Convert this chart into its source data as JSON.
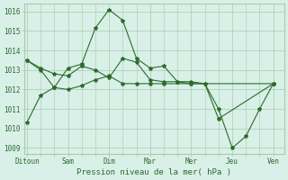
{
  "background_color": "#d8f0e8",
  "grid_color": "#aacaaa",
  "line_color": "#2d6a2d",
  "xtick_labels": [
    "Ditoun",
    "Sam",
    "Dim",
    "Mar",
    "Mer",
    "Jeu",
    "Ven"
  ],
  "xlabel": "Pression niveau de la mer( hPa )",
  "ytick_min": 1009,
  "ytick_max": 1016,
  "series": [
    {
      "x": [
        0,
        0.5,
        1,
        1.5,
        2,
        2.5,
        3,
        3.5,
        4,
        4.5,
        5,
        5.5,
        6,
        6.5,
        7,
        7.5,
        8,
        8.5,
        9
      ],
      "y": [
        1010.3,
        1011.7,
        1012.1,
        1013.1,
        1013.3,
        1015.15,
        1016.1,
        1015.55,
        1013.6,
        1013.1,
        1013.2,
        1012.4,
        1012.4,
        1012.3,
        1011.0,
        1009.0,
        1009.6,
        1011.0,
        1012.3
      ]
    },
    {
      "x": [
        0,
        0.5,
        1,
        1.5,
        2,
        2.5,
        3,
        3.5,
        4,
        4.5,
        5,
        5.5,
        6,
        6.5,
        7,
        9
      ],
      "y": [
        1013.5,
        1013.1,
        1012.8,
        1012.7,
        1013.2,
        1013.0,
        1012.6,
        1013.6,
        1013.4,
        1012.5,
        1012.4,
        1012.4,
        1012.3,
        1012.3,
        1010.5,
        1012.3
      ]
    },
    {
      "x": [
        0,
        0.5,
        1,
        1.5,
        2,
        2.5,
        3,
        3.5,
        4,
        4.5,
        5,
        6,
        9
      ],
      "y": [
        1013.5,
        1013.0,
        1012.1,
        1012.0,
        1012.2,
        1012.5,
        1012.7,
        1012.3,
        1012.3,
        1012.3,
        1012.3,
        1012.3,
        1012.3
      ]
    }
  ],
  "xtick_positions": [
    0,
    1.5,
    3,
    4.5,
    6,
    7.5,
    9
  ],
  "xlim": [
    -0.1,
    9.4
  ],
  "ylim": [
    1008.7,
    1016.4
  ]
}
